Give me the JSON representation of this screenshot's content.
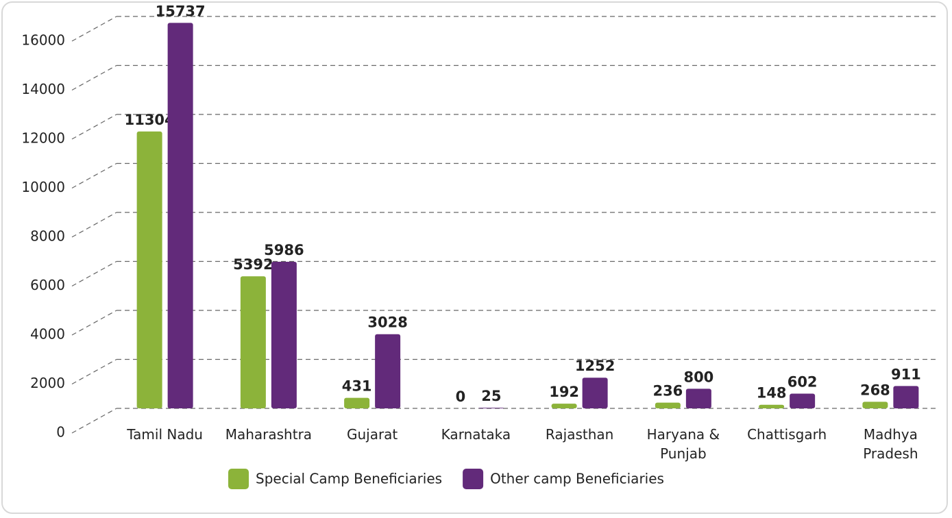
{
  "chart_data": {
    "type": "bar",
    "categories": [
      "Tamil Nadu",
      "Maharashtra",
      "Gujarat",
      "Karnataka",
      "Rajasthan",
      "Haryana & Punjab",
      "Chattisgarh",
      "Madhya Pradesh"
    ],
    "series": [
      {
        "name": "Special Camp Beneficiaries",
        "color": "#8cb33a",
        "values": [
          11304,
          5392,
          431,
          0,
          192,
          236,
          148,
          268
        ]
      },
      {
        "name": "Other camp Beneficiaries",
        "color": "#622a7a",
        "values": [
          15737,
          5986,
          3028,
          25,
          1252,
          800,
          602,
          911
        ]
      }
    ],
    "ylim": [
      0,
      16000
    ],
    "yticks": [
      0,
      2000,
      4000,
      6000,
      8000,
      10000,
      12000,
      14000,
      16000
    ],
    "grid": true,
    "legend": "bottom"
  }
}
